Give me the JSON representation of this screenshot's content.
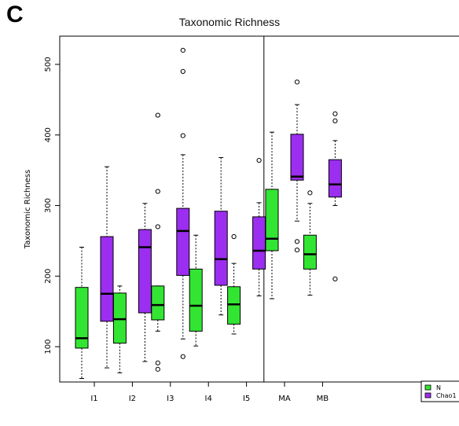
{
  "panel_label": "C",
  "chart_data": {
    "type": "box",
    "title": "Taxonomic Richness",
    "xlabel": "",
    "ylabel": "Taxonomic  Richness",
    "ylim": [
      50,
      540
    ],
    "yticks": [
      100,
      200,
      300,
      400,
      500
    ],
    "categories": [
      "I1",
      "I2",
      "I3",
      "I4",
      "I5",
      "MA",
      "MB"
    ],
    "separator_after": "I5",
    "grid": false,
    "legend_position": "bottom-right",
    "colors": {
      "N": "#33e533",
      "Chao1": "#9b2ef0"
    },
    "series": [
      {
        "name": "N",
        "boxes": [
          {
            "min": 55,
            "q1": 98,
            "median": 112,
            "q3": 184,
            "max": 241,
            "outliers": []
          },
          {
            "min": 63,
            "q1": 105,
            "median": 139,
            "q3": 176,
            "max": 186,
            "outliers": []
          },
          {
            "min": 122,
            "q1": 138,
            "median": 159,
            "q3": 186,
            "max": 186,
            "outliers": [
              428,
              320,
              270,
              77,
              68
            ]
          },
          {
            "min": 101,
            "q1": 122,
            "median": 158,
            "q3": 210,
            "max": 258,
            "outliers": []
          },
          {
            "min": 118,
            "q1": 132,
            "median": 160,
            "q3": 185,
            "max": 218,
            "outliers": [
              256
            ]
          },
          {
            "min": 168,
            "q1": 236,
            "median": 253,
            "q3": 323,
            "max": 404,
            "outliers": []
          },
          {
            "min": 173,
            "q1": 210,
            "median": 231,
            "q3": 258,
            "max": 303,
            "outliers": [
              318
            ]
          }
        ]
      },
      {
        "name": "Chao1",
        "boxes": [
          {
            "min": 70,
            "q1": 136,
            "median": 175,
            "q3": 256,
            "max": 355,
            "outliers": []
          },
          {
            "min": 79,
            "q1": 148,
            "median": 241,
            "q3": 266,
            "max": 303,
            "outliers": []
          },
          {
            "min": 111,
            "q1": 201,
            "median": 264,
            "q3": 296,
            "max": 372,
            "outliers": [
              520,
              490,
              399,
              86
            ]
          },
          {
            "min": 145,
            "q1": 187,
            "median": 224,
            "q3": 292,
            "max": 368,
            "outliers": []
          },
          {
            "min": 172,
            "q1": 210,
            "median": 236,
            "q3": 284,
            "max": 304,
            "outliers": [
              364
            ]
          },
          {
            "min": 278,
            "q1": 336,
            "median": 341,
            "q3": 401,
            "max": 443,
            "outliers": [
              475,
              249,
              237
            ]
          },
          {
            "min": 300,
            "q1": 312,
            "median": 330,
            "q3": 365,
            "max": 392,
            "outliers": [
              430,
              420,
              196
            ]
          }
        ]
      }
    ]
  }
}
